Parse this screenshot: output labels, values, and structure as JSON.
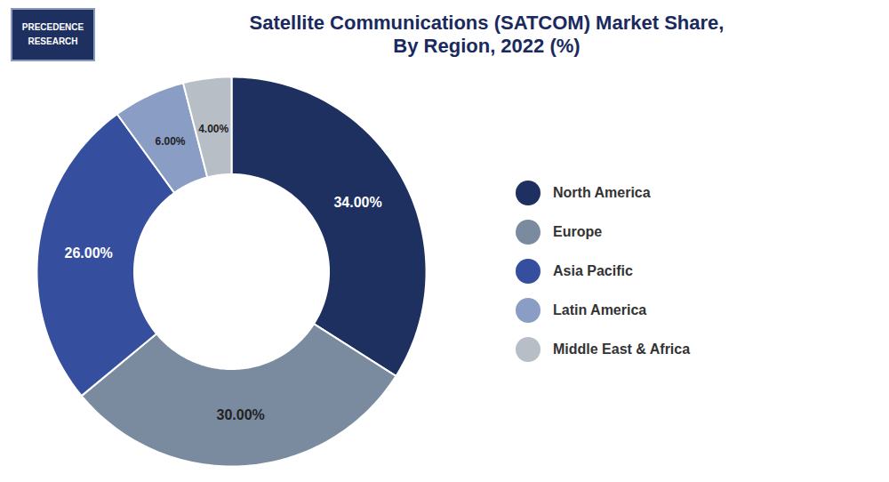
{
  "chart_data": {
    "type": "pie",
    "title": "Satellite Communications (SATCOM) Market Share,\nBy Region, 2022 (%)",
    "categories": [
      "North America",
      "Europe",
      "Asia Pacific",
      "Latin America",
      "Middle East & Africa"
    ],
    "values": [
      34.0,
      30.0,
      26.0,
      6.0,
      4.0
    ],
    "value_labels": [
      "34.00%",
      "30.00%",
      "26.00%",
      "6.00%",
      "4.00%"
    ],
    "colors": [
      "#1e3060",
      "#7a8ba0",
      "#354f9e",
      "#8a9dc4",
      "#b8bec6"
    ],
    "data_labels": true,
    "legend": "right",
    "annotations": [
      "PRECEDENCE",
      "RESEARCH"
    ]
  }
}
